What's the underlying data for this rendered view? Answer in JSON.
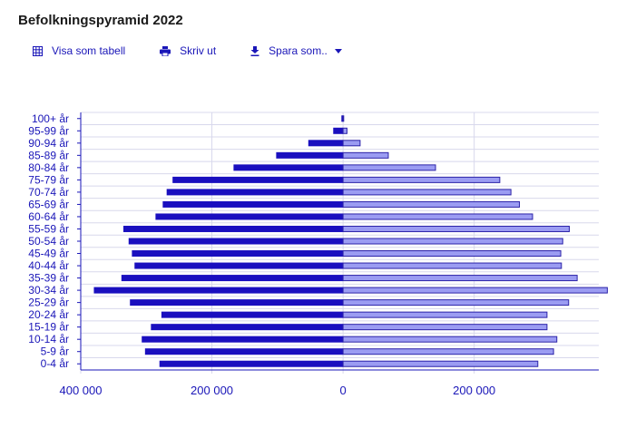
{
  "title": "Befolkningspyramid 2022",
  "toolbar": {
    "table_label": "Visa som tabell",
    "print_label": "Skriv ut",
    "save_label": "Spara som.."
  },
  "colors": {
    "left_bar": "#1a0fbf",
    "right_bar": "#9b9cf2",
    "right_bar_stroke": "#2b22a8",
    "text": "#1a16b8",
    "grid": "#d8d8ec"
  },
  "chart_data": {
    "type": "bar",
    "orientation": "horizontal",
    "layout": "population-pyramid",
    "categories": [
      "0-4 år",
      "5-9 år",
      "10-14 år",
      "15-19 år",
      "20-24 år",
      "25-29 år",
      "30-34 år",
      "35-39 år",
      "40-44 år",
      "45-49 år",
      "50-54 år",
      "55-59 år",
      "60-64 år",
      "65-69 år",
      "70-74 år",
      "75-79 år",
      "80-84 år",
      "85-89 år",
      "90-94 år",
      "95-99 år",
      "100+ år"
    ],
    "series": [
      {
        "side": "left",
        "values": [
          280000,
          302000,
          307000,
          293000,
          277000,
          325000,
          380000,
          338000,
          318000,
          322000,
          327000,
          335000,
          286000,
          275000,
          269000,
          260000,
          167000,
          102000,
          53000,
          15000,
          2500
        ]
      },
      {
        "side": "right",
        "values": [
          297000,
          321000,
          326000,
          311000,
          311000,
          344000,
          403000,
          357000,
          333000,
          332000,
          335000,
          345000,
          289000,
          269000,
          256000,
          239000,
          141000,
          69000,
          26000,
          6000,
          1000
        ]
      }
    ],
    "x_tick_labels": [
      "400 000",
      "200 000",
      "0",
      "200 000"
    ],
    "x_tick_values": [
      -400000,
      -200000,
      0,
      200000
    ],
    "xlim": [
      -400000,
      390000
    ],
    "grid": true
  }
}
